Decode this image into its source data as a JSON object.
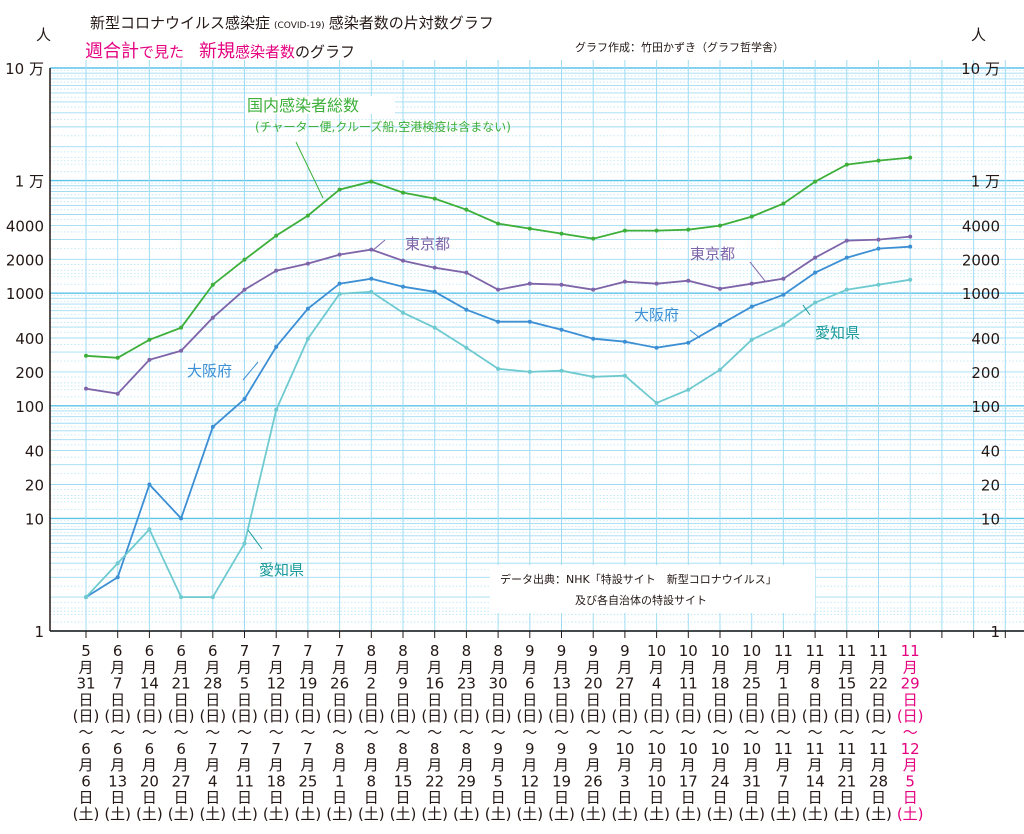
{
  "chart_data": {
    "type": "line",
    "title": "新型コロナウイルス感染症",
    "title_tag": "(COVID-19)",
    "title_rest": "感染者数の片対数グラフ",
    "subtitle_parts": [
      {
        "text": "週合計",
        "color": "#e4007f"
      },
      {
        "text": "で見た　",
        "color": "#e4007f"
      },
      {
        "text": "新規",
        "color": "#e4007f"
      },
      {
        "text": "感染者数",
        "color": "#e4007f"
      },
      {
        "text": "のグラフ",
        "color": "#231815"
      }
    ],
    "author": "グラフ作成：竹田かずき（グラフ哲学舎）",
    "yunit": "人",
    "yscale": "log",
    "ylim": [
      1,
      100000
    ],
    "yticks": [
      {
        "value": 1,
        "label": "1"
      },
      {
        "value": 10,
        "label": "10"
      },
      {
        "value": 20,
        "label": "20"
      },
      {
        "value": 40,
        "label": "40"
      },
      {
        "value": 100,
        "label": "100"
      },
      {
        "value": 200,
        "label": "200"
      },
      {
        "value": 400,
        "label": "400"
      },
      {
        "value": 1000,
        "label": "1000"
      },
      {
        "value": 2000,
        "label": "2000"
      },
      {
        "value": 4000,
        "label": "4000"
      },
      {
        "value": 10000,
        "label": "1 万"
      },
      {
        "value": 100000,
        "label": "10 万"
      }
    ],
    "xlabel_words": {
      "month": "月",
      "day": "日",
      "sun": "(日)",
      "sat": "(土)",
      "tilde": "〜"
    },
    "categories": [
      [
        "5",
        "31",
        "6",
        "6"
      ],
      [
        "6",
        "7",
        "6",
        "13"
      ],
      [
        "6",
        "14",
        "6",
        "20"
      ],
      [
        "6",
        "21",
        "6",
        "27"
      ],
      [
        "6",
        "28",
        "7",
        "4"
      ],
      [
        "7",
        "5",
        "7",
        "11"
      ],
      [
        "7",
        "12",
        "7",
        "18"
      ],
      [
        "7",
        "19",
        "7",
        "25"
      ],
      [
        "7",
        "26",
        "8",
        "1"
      ],
      [
        "8",
        "2",
        "8",
        "8"
      ],
      [
        "8",
        "9",
        "8",
        "15"
      ],
      [
        "8",
        "16",
        "8",
        "22"
      ],
      [
        "8",
        "23",
        "8",
        "29"
      ],
      [
        "8",
        "30",
        "9",
        "5"
      ],
      [
        "9",
        "6",
        "9",
        "12"
      ],
      [
        "9",
        "13",
        "9",
        "19"
      ],
      [
        "9",
        "20",
        "9",
        "26"
      ],
      [
        "9",
        "27",
        "10",
        "3"
      ],
      [
        "10",
        "4",
        "10",
        "10"
      ],
      [
        "10",
        "11",
        "10",
        "17"
      ],
      [
        "10",
        "18",
        "10",
        "24"
      ],
      [
        "10",
        "25",
        "10",
        "31"
      ],
      [
        "11",
        "1",
        "11",
        "7"
      ],
      [
        "11",
        "8",
        "11",
        "14"
      ],
      [
        "11",
        "15",
        "11",
        "21"
      ],
      [
        "11",
        "22",
        "11",
        "28"
      ],
      [
        "11",
        "29",
        "12",
        "5"
      ]
    ],
    "highlight_color": "#e4007f",
    "series": [
      {
        "name": "国内感染者総数",
        "note": "(チャーター便,クルーズ船,空港検疫は含まない)",
        "color": "#3daf3a",
        "values": [
          278,
          267,
          386,
          494,
          1190,
          1985,
          3245,
          4886,
          8318,
          9795,
          7820,
          6920,
          5520,
          4150,
          3745,
          3380,
          3050,
          3594,
          3594,
          3665,
          3981,
          4786,
          6250,
          9795,
          13870,
          15060,
          16000
        ]
      },
      {
        "name": "東京都",
        "color": "#7e64a8",
        "values": [
          142,
          128,
          256,
          308,
          606,
          1075,
          1585,
          1830,
          2200,
          2437,
          1945,
          1686,
          1522,
          1075,
          1215,
          1190,
          1075,
          1266,
          1215,
          1291,
          1096,
          1215,
          1345,
          2068,
          2930,
          2990,
          3180
        ]
      },
      {
        "name": "大阪府",
        "color": "#3d8fd4",
        "values": [
          2,
          3,
          20,
          10,
          65,
          115,
          334,
          728,
          1215,
          1345,
          1142,
          1030,
          713,
          558,
          558,
          474,
          394,
          371,
          328,
          363,
          525,
          759,
          970,
          1522,
          2068,
          2488,
          2590
        ]
      },
      {
        "name": "愛知県",
        "color": "#6fcad0",
        "label_color": "#1a9a9a",
        "values": [
          2,
          4,
          8,
          2,
          2,
          6,
          92,
          394,
          990,
          1030,
          671,
          494,
          328,
          213,
          200,
          205,
          181,
          185,
          106,
          139,
          209,
          386,
          525,
          824,
          1075,
          1190,
          1318
        ]
      }
    ],
    "source_line1": "データ出典：NHK「特設サイト　新型コロナウイルス」",
    "source_line2": "及び各自治体の特設サイト",
    "grid": true
  }
}
